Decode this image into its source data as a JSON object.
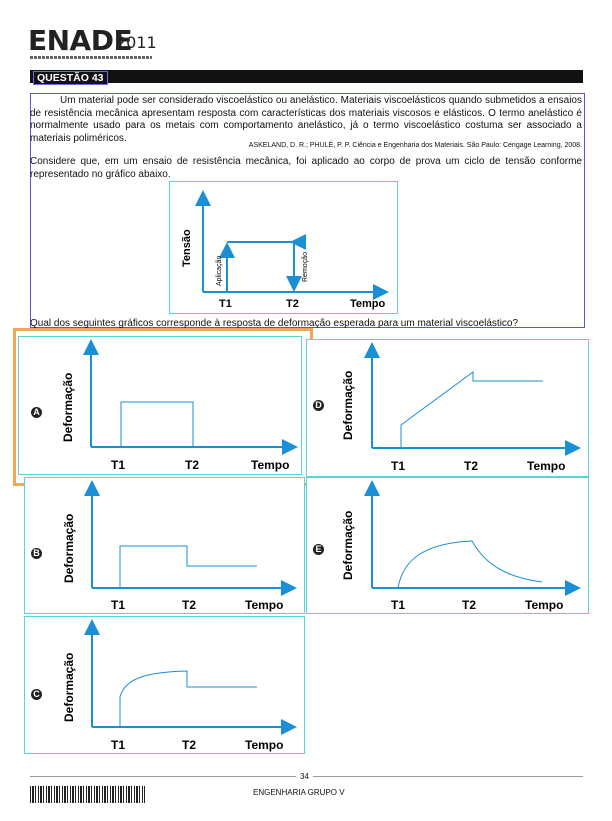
{
  "header": {
    "logo": "ENADE",
    "year": "2011"
  },
  "question": {
    "label": "QUESTÃO 43",
    "paragraph1": "Um material pode ser considerado viscoelástico ou anelástico. Materiais viscoelásticos quando submetidos a ensaios de resistência mecânica apresentam resposta com características dos materiais viscosos e elásticos. O termo anelástico é normalmente usado para os metais com comportamento anelástico, já o termo viscoelástico costuma ser associado a materiais poliméricos.",
    "reference": "ASKELAND, D. R.; PHULÉ, P. P. Ciência e Engenharia dos Materiais. São Paulo: Cengage Learning, 2008.",
    "paragraph2": "Considere que, em um ensaio de resistência mecânica, foi aplicado ao corpo de prova um ciclo de tensão conforme representado no gráfico abaixo.",
    "prompt": "Qual dos seguintes gráficos corresponde à resposta de deformação esperada para um material viscoelástico?"
  },
  "stress_chart": {
    "ylabel": "Tensão",
    "xlabel": "Tempo",
    "t1": "T1",
    "t2": "T2",
    "apply_label": "Aplicação",
    "remove_label": "Remoção"
  },
  "options": [
    {
      "letter": "A",
      "ylabel": "Deformação",
      "xlabel": "Tempo",
      "t1": "T1",
      "t2": "T2"
    },
    {
      "letter": "B",
      "ylabel": "Deformação",
      "xlabel": "Tempo",
      "t1": "T1",
      "t2": "T2"
    },
    {
      "letter": "C",
      "ylabel": "Deformação",
      "xlabel": "Tempo",
      "t1": "T1",
      "t2": "T2"
    },
    {
      "letter": "D",
      "ylabel": "Deformação",
      "xlabel": "Tempo",
      "t1": "T1",
      "t2": "T2"
    },
    {
      "letter": "E",
      "ylabel": "Deformação",
      "xlabel": "Tempo",
      "t1": "T1",
      "t2": "T2"
    }
  ],
  "footer": {
    "page": "34",
    "group": "ENGENHARIA GRUPO V"
  },
  "colors": {
    "axis": "#1a8fd6",
    "frame": "#56d6d6",
    "highlight": "#f2a65a",
    "selection": "#5a55d8"
  }
}
